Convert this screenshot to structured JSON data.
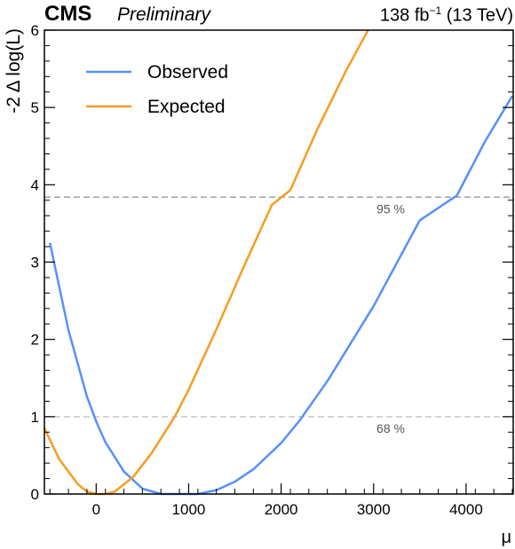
{
  "header": {
    "experiment": "CMS",
    "status": "Preliminary",
    "lumi_value": "138 fb",
    "lumi_exp": "−1",
    "energy": "(13 TeV)"
  },
  "chart_data": {
    "type": "line",
    "xlabel": "μ",
    "ylabel": "-2 Δ log(L)",
    "xlim": [
      -560,
      4510
    ],
    "ylim": [
      0,
      6
    ],
    "xticks": [
      0,
      1000,
      2000,
      3000,
      4000
    ],
    "yticks": [
      0,
      1,
      2,
      3,
      4,
      5,
      6
    ],
    "grid": false,
    "legend_position": "top-left",
    "thresholds": [
      {
        "label": "68 %",
        "value": 1.0,
        "color": "#c8c8c8"
      },
      {
        "label": "95 %",
        "value": 3.84,
        "color": "#a0a0a0"
      }
    ],
    "series": [
      {
        "name": "Observed",
        "color": "#5790fc",
        "x": [
          -500,
          -300,
          -100,
          0,
          100,
          300,
          500,
          700,
          900,
          1000,
          1100,
          1300,
          1500,
          1700,
          2000,
          2200,
          2500,
          3000,
          3500,
          3900,
          4200,
          4500
        ],
        "y": [
          3.25,
          2.12,
          1.26,
          0.94,
          0.67,
          0.29,
          0.07,
          0.0,
          0.0,
          0.0,
          0.0,
          0.05,
          0.16,
          0.32,
          0.66,
          0.95,
          1.46,
          2.43,
          3.54,
          3.86,
          4.55,
          5.15
        ]
      },
      {
        "name": "Expected",
        "color": "#f89c20",
        "x": [
          -560,
          -400,
          -200,
          -100,
          0,
          100,
          200,
          400,
          600,
          850,
          1000,
          1300,
          1600,
          1900,
          2100,
          2400,
          2700,
          2940
        ],
        "y": [
          0.85,
          0.45,
          0.13,
          0.03,
          0.0,
          0.0,
          0.03,
          0.22,
          0.53,
          1.0,
          1.35,
          2.13,
          2.95,
          3.74,
          3.93,
          4.74,
          5.47,
          6.0
        ]
      }
    ]
  }
}
